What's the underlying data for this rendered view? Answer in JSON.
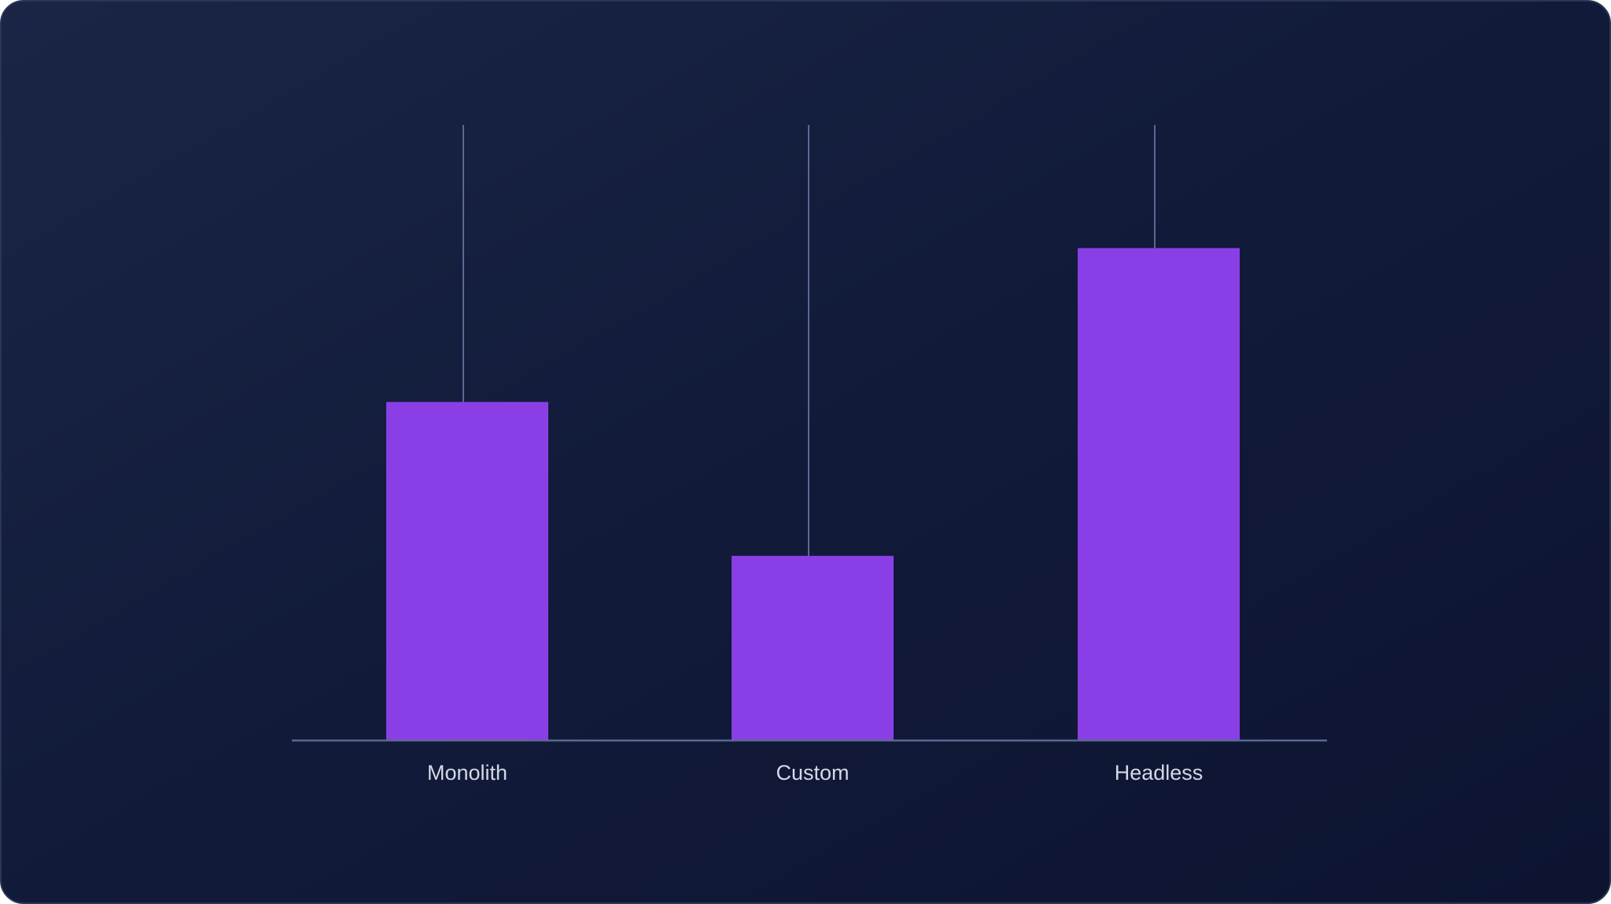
{
  "chart_data": {
    "type": "bar",
    "categories": [
      "Monolith",
      "Custom",
      "Headless"
    ],
    "values": [
      55,
      30,
      80
    ],
    "ylim": [
      0,
      100
    ],
    "grid": false,
    "legend": "none",
    "title": "",
    "xlabel": "",
    "ylabel": ""
  },
  "colors": {
    "bar": "#8a3fe6",
    "axis": "#5a6892",
    "background": "#121b3a"
  }
}
